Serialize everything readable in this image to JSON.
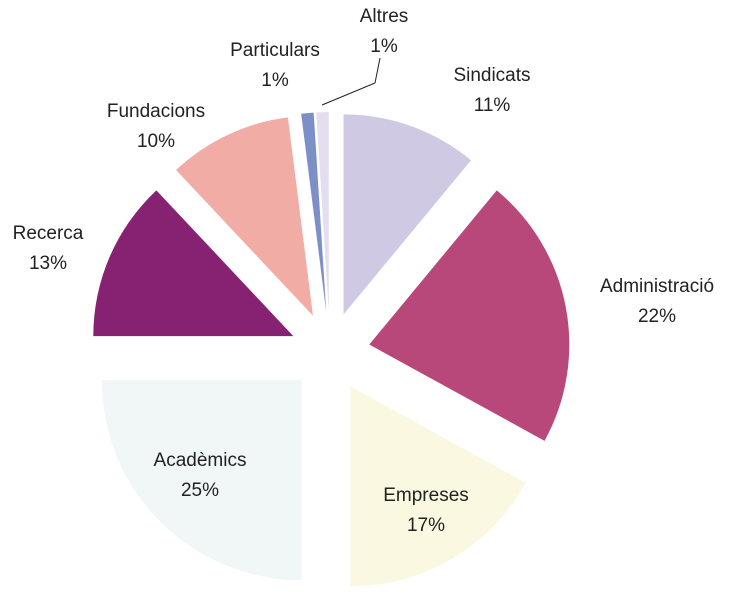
{
  "chart_data": {
    "type": "pie",
    "categories": [
      "Sindicats",
      "Administració",
      "Empreses",
      "Acadèmics",
      "Recerca",
      "Fundacions",
      "Particulars",
      "Altres"
    ],
    "values": [
      11,
      22,
      17,
      25,
      13,
      10,
      1,
      1
    ],
    "value_labels": [
      "11%",
      "22%",
      "17%",
      "25%",
      "13%",
      "10%",
      "1%",
      "1%"
    ],
    "colors": [
      "#cfc9e3",
      "#b8487a",
      "#faf8e0",
      "#f1f6f7",
      "#862271",
      "#f1aca5",
      "#7d8fc7",
      "#e4dff0"
    ]
  }
}
